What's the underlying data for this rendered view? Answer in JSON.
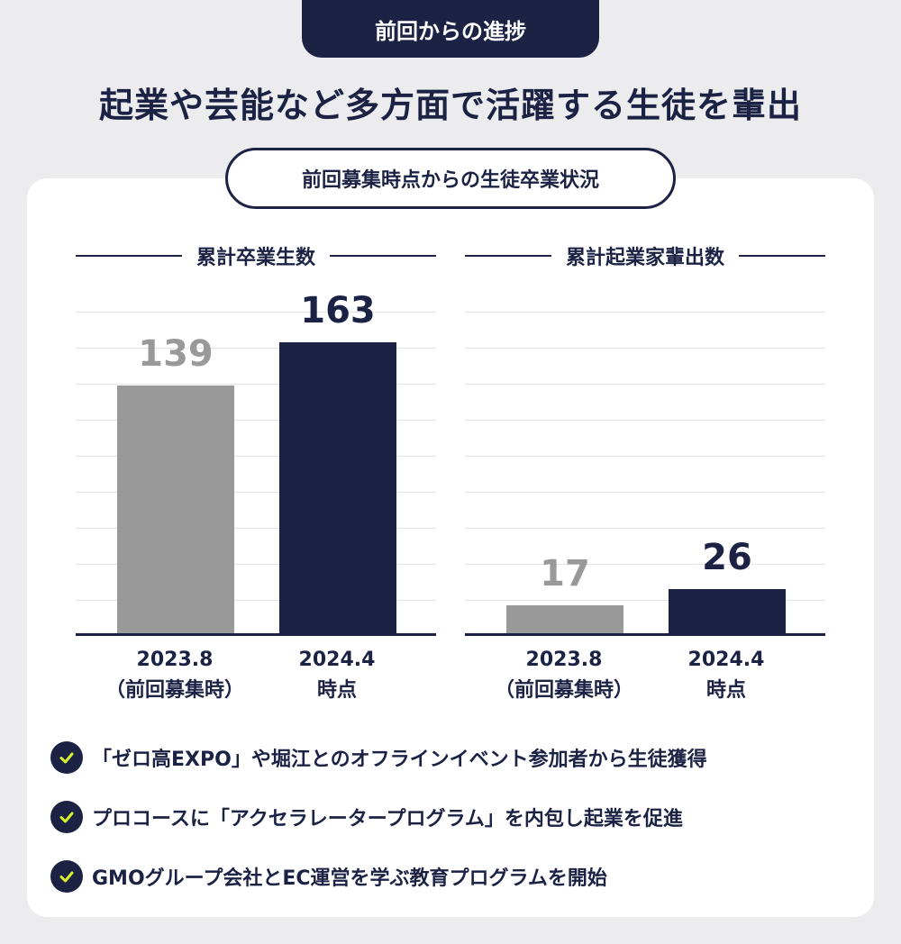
{
  "header": {
    "tag": "前回からの進捗",
    "headline": "起業や芸能など多方面で活躍する生徒を輩出",
    "subtitle": "前回募集時点からの生徒卒業状況"
  },
  "colors": {
    "navy": "#1b2244",
    "gray": "#999999",
    "check": "#d7f22d"
  },
  "chart_data": [
    {
      "type": "bar",
      "title": "累計卒業生数",
      "categories": [
        {
          "line1": "2023.8",
          "line2": "（前回募集時）"
        },
        {
          "line1": "2024.4",
          "line2": "時点"
        }
      ],
      "values": [
        139,
        163
      ],
      "ylim": [
        0,
        180
      ],
      "grid": true
    },
    {
      "type": "bar",
      "title": "累計起業家輩出数",
      "categories": [
        {
          "line1": "2023.8",
          "line2": "（前回募集時）"
        },
        {
          "line1": "2024.4",
          "line2": "時点"
        }
      ],
      "values": [
        17,
        26
      ],
      "ylim": [
        0,
        180
      ],
      "grid": true
    }
  ],
  "bullets": [
    {
      "icon": "check-icon",
      "text": "「ゼロ高EXPO」や堀江とのオフラインイベント参加者から生徒獲得"
    },
    {
      "icon": "check-icon",
      "text": "プロコースに「アクセラレータープログラム」を内包し起業を促進"
    },
    {
      "icon": "check-icon",
      "text": "GMOグループ会社とEC運営を学ぶ教育プログラムを開始"
    }
  ]
}
